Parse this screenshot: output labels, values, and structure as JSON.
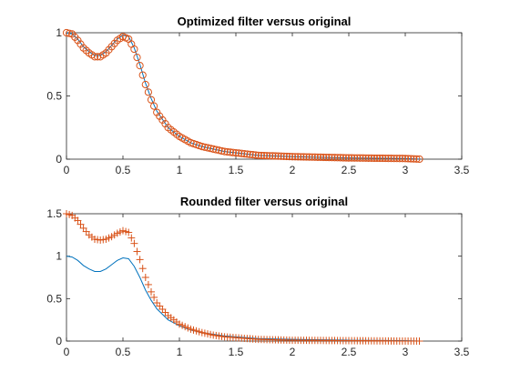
{
  "colors": {
    "line": "#0072BD",
    "marker": "#D95319",
    "axis": "#262626",
    "background": "#ffffff"
  },
  "chart_data": [
    {
      "type": "line",
      "title": "Optimized filter versus original",
      "xlabel": "",
      "ylabel": "",
      "xlim": [
        0,
        3.5
      ],
      "ylim": [
        0,
        1
      ],
      "xticks": [
        "0",
        "0.5",
        "1",
        "1.5",
        "2",
        "2.5",
        "3",
        "3.5"
      ],
      "yticks": [
        "0",
        "0.5",
        "1"
      ],
      "grid": false,
      "series": [
        {
          "style": "line",
          "color": "#0072BD",
          "x": [
            0,
            0.05,
            0.1,
            0.15,
            0.2,
            0.25,
            0.3,
            0.35,
            0.4,
            0.45,
            0.5,
            0.55,
            0.6,
            0.65,
            0.7,
            0.75,
            0.8,
            0.9,
            1.0,
            1.1,
            1.2,
            1.3,
            1.4,
            1.5,
            1.7,
            2.0,
            2.5,
            3.0,
            3.14
          ],
          "y": [
            1.0,
            0.99,
            0.95,
            0.89,
            0.85,
            0.82,
            0.82,
            0.85,
            0.9,
            0.95,
            0.98,
            0.97,
            0.88,
            0.75,
            0.6,
            0.48,
            0.38,
            0.25,
            0.18,
            0.13,
            0.1,
            0.08,
            0.06,
            0.05,
            0.03,
            0.02,
            0.01,
            0.005,
            0.0
          ]
        },
        {
          "style": "markers",
          "marker": "circle",
          "color": "#D95319",
          "x": [
            0,
            0.05,
            0.1,
            0.15,
            0.2,
            0.25,
            0.3,
            0.35,
            0.4,
            0.45,
            0.5,
            0.55,
            0.6,
            0.65,
            0.7,
            0.75,
            0.8,
            0.9,
            1.0,
            1.1,
            1.2,
            1.3,
            1.4,
            1.5,
            1.7,
            2.0,
            2.5,
            3.0,
            3.14
          ],
          "y": [
            1.0,
            0.99,
            0.94,
            0.88,
            0.84,
            0.81,
            0.81,
            0.84,
            0.89,
            0.94,
            0.97,
            0.95,
            0.87,
            0.74,
            0.59,
            0.47,
            0.37,
            0.25,
            0.18,
            0.13,
            0.1,
            0.08,
            0.06,
            0.05,
            0.03,
            0.02,
            0.01,
            0.005,
            0.0
          ]
        }
      ]
    },
    {
      "type": "line",
      "title": "Rounded filter versus original",
      "xlabel": "",
      "ylabel": "",
      "xlim": [
        0,
        3.5
      ],
      "ylim": [
        0,
        1.5
      ],
      "xticks": [
        "0",
        "0.5",
        "1",
        "1.5",
        "2",
        "2.5",
        "3",
        "3.5"
      ],
      "yticks": [
        "0",
        "0.5",
        "1",
        "1.5"
      ],
      "grid": false,
      "series": [
        {
          "style": "line",
          "color": "#0072BD",
          "x": [
            0,
            0.05,
            0.1,
            0.15,
            0.2,
            0.25,
            0.3,
            0.35,
            0.4,
            0.45,
            0.5,
            0.55,
            0.6,
            0.65,
            0.7,
            0.75,
            0.8,
            0.9,
            1.0,
            1.1,
            1.2,
            1.3,
            1.4,
            1.5,
            1.7,
            2.0,
            2.5,
            3.0,
            3.14
          ],
          "y": [
            1.0,
            0.99,
            0.95,
            0.89,
            0.85,
            0.82,
            0.82,
            0.85,
            0.9,
            0.95,
            0.98,
            0.97,
            0.88,
            0.75,
            0.6,
            0.48,
            0.38,
            0.25,
            0.18,
            0.13,
            0.1,
            0.08,
            0.06,
            0.05,
            0.03,
            0.02,
            0.01,
            0.005,
            0.0
          ]
        },
        {
          "style": "markers",
          "marker": "plus",
          "color": "#D95319",
          "x": [
            0,
            0.05,
            0.1,
            0.15,
            0.2,
            0.25,
            0.3,
            0.35,
            0.4,
            0.45,
            0.5,
            0.55,
            0.6,
            0.65,
            0.7,
            0.75,
            0.8,
            0.9,
            1.0,
            1.1,
            1.2,
            1.3,
            1.4,
            1.5,
            1.7,
            2.0,
            2.5,
            3.0,
            3.14
          ],
          "y": [
            1.5,
            1.48,
            1.42,
            1.33,
            1.25,
            1.2,
            1.19,
            1.2,
            1.23,
            1.27,
            1.3,
            1.28,
            1.15,
            0.96,
            0.75,
            0.58,
            0.45,
            0.3,
            0.2,
            0.14,
            0.1,
            0.07,
            0.05,
            0.04,
            0.02,
            0.01,
            0.005,
            0.0,
            0.0
          ]
        }
      ]
    }
  ]
}
